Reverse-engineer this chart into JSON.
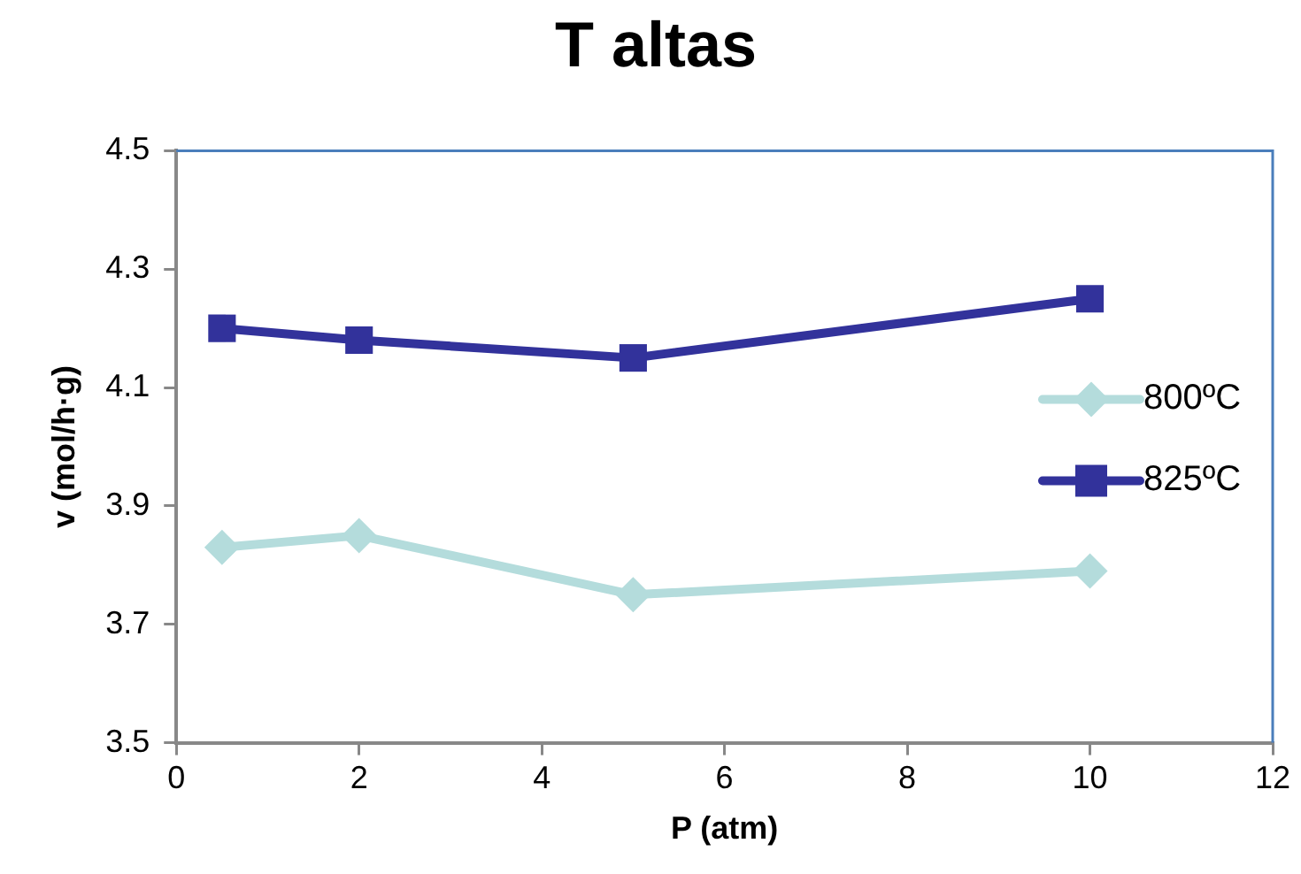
{
  "chart_data": {
    "type": "line",
    "title": "T altas",
    "xlabel": "P (atm)",
    "ylabel": "v (mol/h·g)",
    "x": [
      0.5,
      2,
      5,
      10
    ],
    "series": [
      {
        "name": "800ºC",
        "color": "#b4dcdc",
        "values": [
          3.83,
          3.85,
          3.75,
          3.79
        ],
        "marker": "diamond"
      },
      {
        "name": "825ºC",
        "color": "#32329b",
        "values": [
          4.2,
          4.18,
          4.15,
          4.25
        ],
        "marker": "square"
      }
    ],
    "xlim": [
      0,
      12
    ],
    "xticks": [
      0,
      2,
      4,
      6,
      8,
      10,
      12
    ],
    "ylim": [
      3.5,
      4.5
    ],
    "yticks": [
      3.5,
      3.7,
      3.9,
      4.1,
      4.3,
      4.5
    ],
    "grid": false,
    "legend": "right",
    "line_style": "solid"
  }
}
